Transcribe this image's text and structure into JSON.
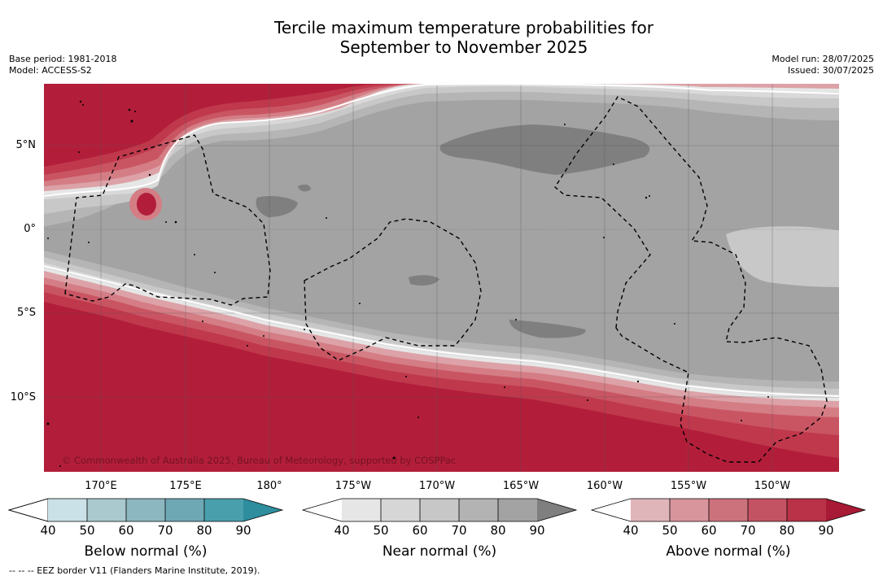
{
  "title": {
    "line1": "Tercile maximum temperature probabilities for",
    "line2": "September to November 2025"
  },
  "meta": {
    "base_period": "Base period: 1981-2018",
    "model": "Model: ACCESS-S2",
    "model_run": "Model run: 28/07/2025",
    "issued": "Issued: 30/07/2025"
  },
  "map": {
    "lat_labels": [
      "5°N",
      "0°",
      "5°S",
      "10°S"
    ],
    "lon_labels": [
      "170°E",
      "175°E",
      "180°",
      "175°W",
      "170°W",
      "165°W",
      "160°W",
      "155°W",
      "150°W"
    ],
    "copyright": "© Commonwealth of Australia 2025, Bureau of Meteorology, supported by COSPPac",
    "colors": {
      "above_90": "#b21e3a",
      "above_80": "#c0384c",
      "above_70": "#c95563",
      "above_60": "#d47d85",
      "above_50": "#dca2a7",
      "near_40": "#e6e6e6",
      "near_50": "#d9d9d9",
      "near_60": "#c8c8c8",
      "near_70": "#b5b5b5",
      "near_80": "#a3a3a3",
      "near_90": "#7f7f7f"
    }
  },
  "colorbars": [
    {
      "title": "Below normal (%)",
      "ticks": [
        "40",
        "50",
        "60",
        "70",
        "80",
        "90"
      ],
      "colors": [
        "#c9e1e7",
        "#a9c9cf",
        "#8db7c0",
        "#6fa8b5",
        "#4a9fad",
        "#2e8e9e"
      ]
    },
    {
      "title": "Near normal (%)",
      "ticks": [
        "40",
        "50",
        "60",
        "70",
        "80",
        "90"
      ],
      "colors": [
        "#e6e6e6",
        "#d6d6d6",
        "#c7c7c7",
        "#b3b3b3",
        "#a3a3a3",
        "#7f7f7f"
      ]
    },
    {
      "title": "Above normal (%)",
      "ticks": [
        "40",
        "50",
        "60",
        "70",
        "80",
        "90"
      ],
      "colors": [
        "#e0b5ba",
        "#d8959c",
        "#cc727c",
        "#c35363",
        "#b93247",
        "#a81a35"
      ]
    }
  ],
  "footnote": "-- -- -- EEZ border V11 (Flanders Marine Institute, 2019)."
}
